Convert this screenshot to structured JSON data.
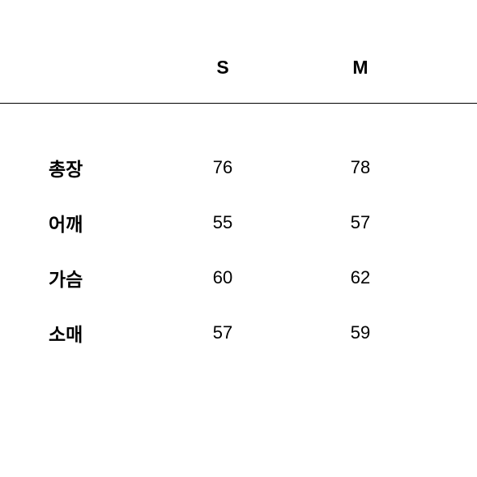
{
  "table": {
    "type": "table",
    "columns": [
      "S",
      "M"
    ],
    "rows": [
      {
        "label": "총장",
        "values": [
          "76",
          "78"
        ]
      },
      {
        "label": "어깨",
        "values": [
          "55",
          "57"
        ]
      },
      {
        "label": "가슴",
        "values": [
          "60",
          "62"
        ]
      },
      {
        "label": "소매",
        "values": [
          "57",
          "59"
        ]
      }
    ],
    "header_fontsize": 23,
    "header_fontweight": 700,
    "label_fontsize": 23,
    "label_fontweight": 700,
    "cell_fontsize": 22,
    "cell_fontweight": 400,
    "text_color": "#000000",
    "border_color": "#000000",
    "background_color": "#ffffff"
  }
}
